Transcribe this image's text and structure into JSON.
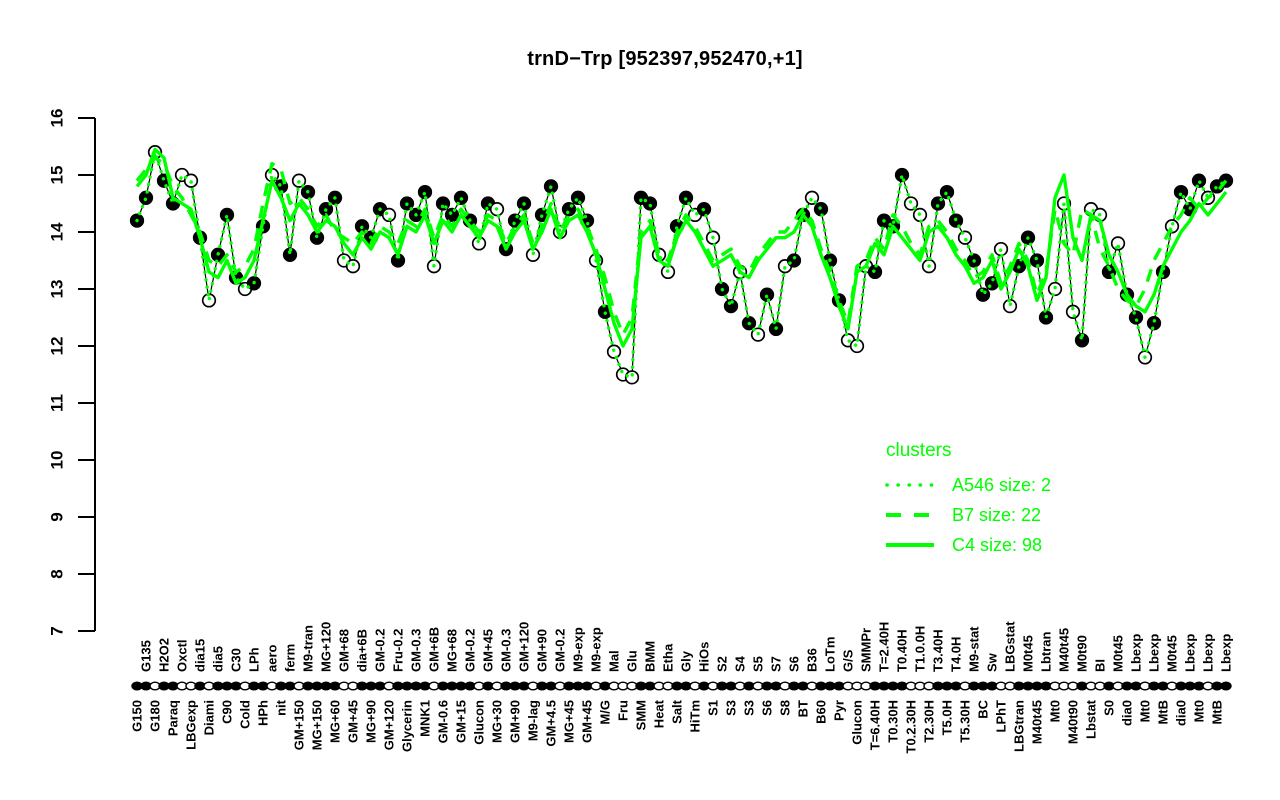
{
  "title": "trnD−Trp [952397,952470,+1]",
  "colors": {
    "cluster_green": "#00FF00",
    "series_black": "#000000",
    "background": "#FFFFFF"
  },
  "legend": {
    "title": "clusters",
    "entries": [
      {
        "label": "A546 size: 2",
        "line_style": "dotted"
      },
      {
        "label": "B7 size: 22",
        "line_style": "dashed"
      },
      {
        "label": "C4 size: 98",
        "line_style": "solid"
      }
    ]
  },
  "chart_data": {
    "type": "line",
    "title": "trnD−Trp [952397,952470,+1]",
    "xlabel": "",
    "ylabel": "",
    "ylim": [
      7,
      16
    ],
    "yticks": [
      7,
      8,
      9,
      10,
      11,
      12,
      13,
      14,
      15,
      16
    ],
    "grid": false,
    "legend_position": "right-middle",
    "categories": [
      "G150",
      "G135",
      "G180",
      "H2O2",
      "Paraq",
      "Oxctl",
      "LBGexp",
      "dia15",
      "Diami",
      "dia5",
      "C90",
      "C30",
      "Cold",
      "LPh",
      "HPh",
      "aero",
      "nit",
      "ferm",
      "GM+150",
      "M9-tran",
      "MG+150",
      "MG+120",
      "MG+60",
      "GM+68",
      "GM+45",
      "dia+6B",
      "MG+90",
      "GM-0.2",
      "GM+120",
      "Fru-0.2",
      "Glycerin",
      "GM-0.3",
      "MNK1",
      "GM+6B",
      "GM-0.6",
      "MG+68",
      "GM+15",
      "GM-0.2",
      "Glucon",
      "GM+45",
      "MG+30",
      "GM-0.3",
      "GM+90",
      "GM+120",
      "M9-lag",
      "GM+90",
      "GM+4.5",
      "GM-0.2",
      "MG+45",
      "M9-exp",
      "GM+45",
      "M9-exp",
      "M/G",
      "Mal",
      "Fru",
      "Glu",
      "SMM",
      "BMM",
      "Heat",
      "Etha",
      "Salt",
      "Gly",
      "HiTm",
      "HiOs",
      "S1",
      "S2",
      "S3",
      "S4",
      "S3",
      "S5",
      "S6",
      "S7",
      "S8",
      "S6",
      "BT",
      "B36",
      "B60",
      "LoTm",
      "Pyr",
      "G/S",
      "Glucon",
      "SMMPr",
      "T=6.40H",
      "T=2.40H",
      "T0.30H",
      "T0.40H",
      "T0.2.30H",
      "T1.0.0H",
      "T2.30H",
      "T3.40H",
      "T5.0H",
      "T4.0H",
      "T5.30H",
      "M9-stat",
      "BC",
      "Sw",
      "LPhT",
      "LBGstat",
      "LBGtran",
      "M0t45",
      "M40t45",
      "Lbtran",
      "Mt0",
      "M40t45",
      "M40t90",
      "M0t90",
      "Lbstat",
      "BI",
      "S0",
      "M0t45",
      "dia0",
      "Lbexp",
      "Mt0",
      "Lbexp",
      "MtB",
      "M0t45",
      "dia0",
      "Lbexp",
      "Mt0",
      "Lbexp",
      "MtB",
      "Lbexp"
    ],
    "point_markers": [
      "f",
      "f",
      "o",
      "f",
      "f",
      "o",
      "o",
      "f",
      "o",
      "f",
      "f",
      "f",
      "o",
      "f",
      "f",
      "o",
      "f",
      "f",
      "o",
      "f",
      "f",
      "f",
      "f",
      "o",
      "o",
      "f",
      "f",
      "f",
      "o",
      "f",
      "f",
      "f",
      "f",
      "o",
      "f",
      "f",
      "f",
      "f",
      "o",
      "f",
      "o",
      "f",
      "f",
      "f",
      "o",
      "f",
      "f",
      "o",
      "f",
      "f",
      "f",
      "o",
      "f",
      "o",
      "o",
      "o",
      "f",
      "f",
      "o",
      "o",
      "f",
      "f",
      "o",
      "f",
      "o",
      "f",
      "f",
      "o",
      "f",
      "o",
      "f",
      "f",
      "o",
      "f",
      "f",
      "o",
      "f",
      "f",
      "f",
      "o",
      "o",
      "o",
      "f",
      "f",
      "f",
      "f",
      "o",
      "o",
      "o",
      "f",
      "f",
      "f",
      "o",
      "f",
      "f",
      "f",
      "o",
      "o",
      "f",
      "f",
      "f",
      "f",
      "o",
      "o",
      "o",
      "f",
      "o",
      "o",
      "f",
      "o",
      "f",
      "f",
      "o",
      "f",
      "f",
      "o",
      "f",
      "f",
      "f",
      "o",
      "f",
      "f"
    ],
    "series": [
      {
        "name": "expression",
        "color": "#000000",
        "style": "points+line",
        "values": [
          14.2,
          14.6,
          15.4,
          14.9,
          14.5,
          15.0,
          14.9,
          13.9,
          12.8,
          13.6,
          14.3,
          13.2,
          13.0,
          13.1,
          14.1,
          15.0,
          14.8,
          13.6,
          14.9,
          14.7,
          13.9,
          14.4,
          14.6,
          13.5,
          13.4,
          14.1,
          13.9,
          14.4,
          14.3,
          13.5,
          14.5,
          14.3,
          14.7,
          13.4,
          14.5,
          14.3,
          14.6,
          14.2,
          13.8,
          14.5,
          14.4,
          13.7,
          14.2,
          14.5,
          13.6,
          14.3,
          14.8,
          14.0,
          14.4,
          14.6,
          14.2,
          13.5,
          12.6,
          11.9,
          11.5,
          11.45,
          14.6,
          14.5,
          13.6,
          13.3,
          14.1,
          14.6,
          14.3,
          14.4,
          13.9,
          13.0,
          12.7,
          13.3,
          12.4,
          12.2,
          12.9,
          12.3,
          13.4,
          13.5,
          14.3,
          14.6,
          14.4,
          13.5,
          12.8,
          12.1,
          12.0,
          13.4,
          13.3,
          14.2,
          14.1,
          15.0,
          14.5,
          14.3,
          13.4,
          14.5,
          14.7,
          14.2,
          13.9,
          13.5,
          12.9,
          13.1,
          13.7,
          12.7,
          13.4,
          13.9,
          13.5,
          12.5,
          13.0,
          14.5,
          12.6,
          12.1,
          14.4,
          14.3,
          13.3,
          13.8,
          12.9,
          12.5,
          11.8,
          12.4,
          13.3,
          14.1,
          14.7,
          14.4,
          14.9,
          14.6,
          14.8,
          14.9
        ]
      },
      {
        "name": "A546",
        "size": 2,
        "color": "#00FF00",
        "style": "dotted",
        "values": [
          14.2,
          14.6,
          15.4,
          14.9,
          14.5,
          15.0,
          14.9,
          13.9,
          12.8,
          13.6,
          14.3,
          13.2,
          13.0,
          13.1,
          14.1,
          15.0,
          14.8,
          13.6,
          14.9,
          14.7,
          13.9,
          14.4,
          14.6,
          13.5,
          13.4,
          14.1,
          13.9,
          14.4,
          14.3,
          13.5,
          14.5,
          14.3,
          14.7,
          13.4,
          14.5,
          14.3,
          14.6,
          14.2,
          13.8,
          14.5,
          14.4,
          13.7,
          14.2,
          14.5,
          13.6,
          14.3,
          14.8,
          14.0,
          14.4,
          14.6,
          14.2,
          13.5,
          12.6,
          11.9,
          11.5,
          11.45,
          14.6,
          14.5,
          13.6,
          13.3,
          14.1,
          14.6,
          14.3,
          14.4,
          13.9,
          13.0,
          12.7,
          13.3,
          12.4,
          12.2,
          12.9,
          12.3,
          13.4,
          13.5,
          14.3,
          14.6,
          14.4,
          13.5,
          12.8,
          12.1,
          12.0,
          13.4,
          13.3,
          14.2,
          14.1,
          15.0,
          14.5,
          14.3,
          13.4,
          14.5,
          14.7,
          14.2,
          13.9,
          13.5,
          12.9,
          13.1,
          13.7,
          12.7,
          13.4,
          13.9,
          13.5,
          12.5,
          13.0,
          14.5,
          12.6,
          12.1,
          14.4,
          14.3,
          13.3,
          13.8,
          12.9,
          12.5,
          11.8,
          12.4,
          13.3,
          14.1,
          14.7,
          14.4,
          14.9,
          14.6,
          14.8,
          14.9
        ]
      },
      {
        "name": "B7",
        "size": 22,
        "color": "#00FF00",
        "style": "dashed",
        "values": [
          14.9,
          15.1,
          15.3,
          15.2,
          14.8,
          14.6,
          14.3,
          14.0,
          13.5,
          13.4,
          13.6,
          13.3,
          13.4,
          13.7,
          14.5,
          15.2,
          15.1,
          14.5,
          14.6,
          14.4,
          14.1,
          14.3,
          14.0,
          13.9,
          13.8,
          14.0,
          13.8,
          14.1,
          14.0,
          13.8,
          14.2,
          14.1,
          14.4,
          13.9,
          14.3,
          14.1,
          14.4,
          14.2,
          14.0,
          14.3,
          14.2,
          13.8,
          14.1,
          14.3,
          13.8,
          14.1,
          14.5,
          14.0,
          14.3,
          14.4,
          14.1,
          13.7,
          13.2,
          12.6,
          12.2,
          12.5,
          14.0,
          14.2,
          13.6,
          13.5,
          14.0,
          14.3,
          14.1,
          13.8,
          13.5,
          13.6,
          13.7,
          13.4,
          13.3,
          13.6,
          13.8,
          14.0,
          14.0,
          14.2,
          14.4,
          14.2,
          13.7,
          13.3,
          12.8,
          12.4,
          13.4,
          13.5,
          13.9,
          13.7,
          14.3,
          14.1,
          13.8,
          13.6,
          14.1,
          14.2,
          14.0,
          13.7,
          13.5,
          13.2,
          13.3,
          13.6,
          13.1,
          13.4,
          13.8,
          13.5,
          12.9,
          13.3,
          14.4,
          13.8,
          13.6,
          14.4,
          14.3,
          13.7,
          13.4,
          13.0,
          12.8,
          12.7,
          13.0,
          13.5,
          13.8,
          14.1,
          14.3,
          14.6,
          14.4,
          14.6,
          14.7,
          14.9
        ]
      },
      {
        "name": "C4",
        "size": 98,
        "color": "#00FF00",
        "style": "solid",
        "values": [
          14.8,
          15.0,
          15.45,
          15.3,
          14.6,
          14.5,
          14.4,
          13.9,
          13.3,
          13.2,
          13.5,
          13.1,
          13.2,
          13.5,
          14.2,
          14.9,
          14.6,
          14.2,
          14.5,
          14.3,
          14.0,
          14.2,
          14.1,
          13.8,
          13.6,
          13.9,
          13.7,
          14.0,
          13.9,
          13.6,
          14.1,
          14.0,
          14.3,
          13.8,
          14.2,
          14.0,
          14.3,
          14.1,
          13.9,
          14.2,
          14.1,
          13.7,
          14.0,
          14.2,
          13.7,
          14.0,
          14.4,
          13.9,
          14.2,
          14.3,
          14.0,
          13.6,
          13.0,
          12.4,
          12.0,
          12.3,
          13.9,
          14.1,
          13.5,
          13.4,
          13.9,
          14.2,
          14.0,
          13.7,
          13.4,
          13.5,
          13.6,
          13.3,
          13.2,
          13.5,
          13.7,
          13.9,
          13.9,
          14.0,
          14.3,
          14.1,
          13.6,
          13.2,
          12.7,
          12.3,
          13.3,
          13.4,
          13.8,
          13.6,
          14.1,
          13.9,
          13.7,
          13.5,
          14.0,
          14.1,
          13.9,
          13.6,
          13.4,
          13.1,
          13.2,
          13.5,
          13.0,
          13.3,
          13.7,
          13.4,
          12.8,
          13.2,
          14.6,
          15.0,
          13.9,
          13.5,
          14.3,
          14.2,
          13.6,
          13.3,
          12.9,
          12.7,
          12.6,
          12.9,
          13.4,
          13.7,
          14.0,
          14.2,
          14.5,
          14.3,
          14.5,
          14.7
        ]
      }
    ]
  }
}
